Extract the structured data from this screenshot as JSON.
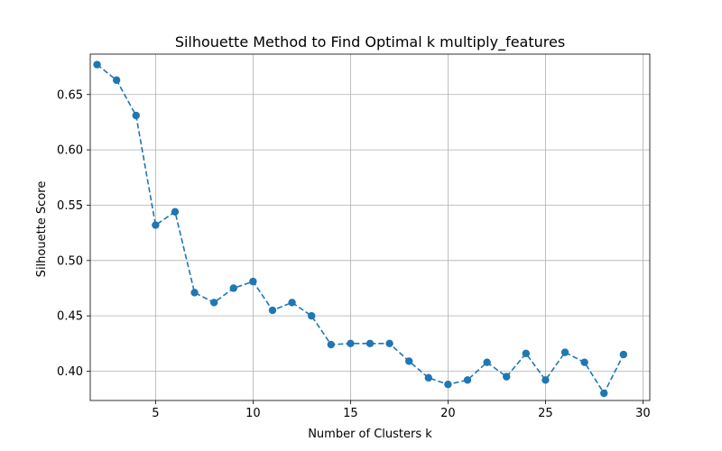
{
  "chart_data": {
    "type": "line",
    "title": "Silhouette Method to Find Optimal k multiply_features",
    "xlabel": "Number of Clusters k",
    "ylabel": "Silhouette Score",
    "xlim": [
      1.65,
      30.35
    ],
    "ylim": [
      0.3735,
      0.6865
    ],
    "x_ticks": [
      5,
      10,
      15,
      20,
      25,
      30
    ],
    "y_ticks": [
      0.4,
      0.45,
      0.5,
      0.55,
      0.6,
      0.65
    ],
    "x_tick_labels": [
      "5",
      "10",
      "15",
      "20",
      "25",
      "30"
    ],
    "y_tick_labels": [
      "0.40",
      "0.45",
      "0.50",
      "0.55",
      "0.60",
      "0.65"
    ],
    "grid": true,
    "line_style": "dashed",
    "marker": "circle",
    "colors": {
      "series": "#1f77b4",
      "grid": "#b0b0b0",
      "axes": "#000000"
    },
    "series": [
      {
        "x": [
          2,
          3,
          4,
          5,
          6,
          7,
          8,
          9,
          10,
          11,
          12,
          13,
          14,
          15,
          16,
          17,
          18,
          19,
          20,
          21,
          22,
          23,
          24,
          25,
          26,
          27,
          28,
          29
        ],
        "values": [
          0.677,
          0.663,
          0.631,
          0.532,
          0.544,
          0.471,
          0.462,
          0.475,
          0.481,
          0.455,
          0.462,
          0.45,
          0.424,
          0.425,
          0.425,
          0.425,
          0.409,
          0.394,
          0.388,
          0.392,
          0.408,
          0.395,
          0.416,
          0.392,
          0.417,
          0.408,
          0.38,
          0.415
        ]
      }
    ]
  }
}
